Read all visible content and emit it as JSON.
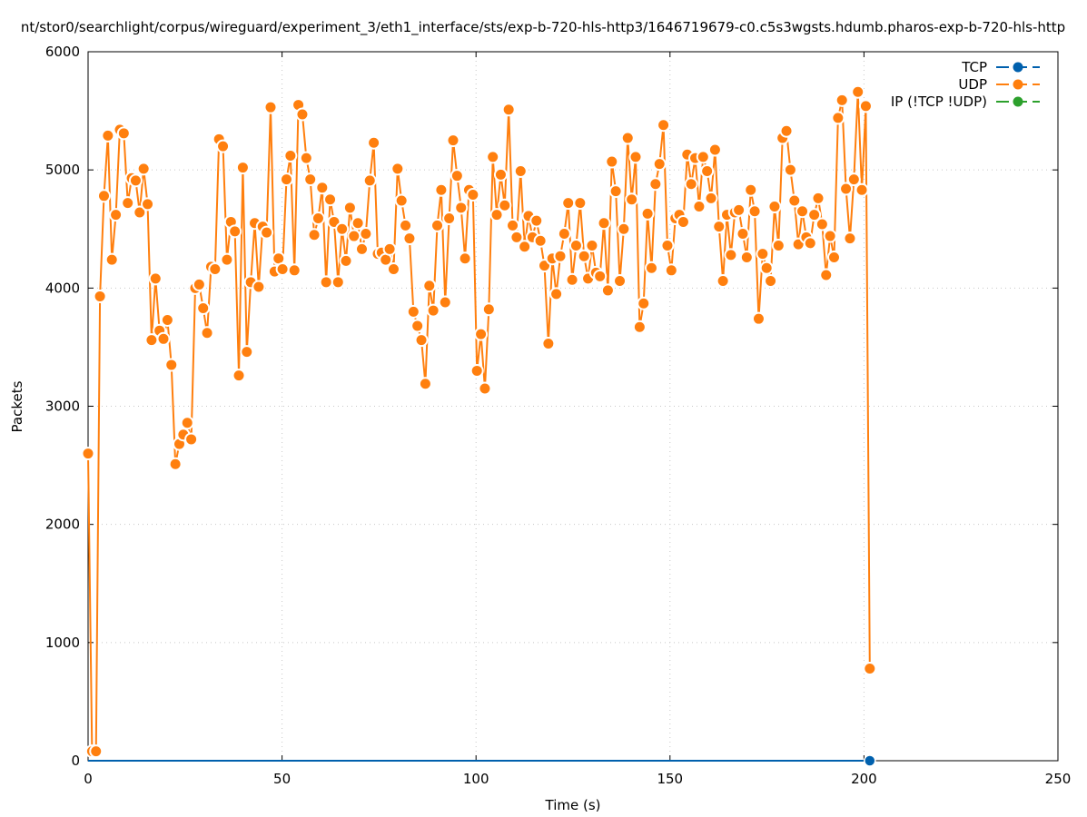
{
  "chart_data": {
    "type": "line",
    "title": "nt/stor0/searchlight/corpus/wireguard/experiment_3/eth1_interface/sts/exp-b-720-hls-http3/1646719679-c0.c5s3wgsts.hdumb.pharos-exp-b-720-hls-http",
    "xlabel": "Time (s)",
    "ylabel": "Packets",
    "xlim": [
      0,
      250
    ],
    "ylim": [
      0,
      6000
    ],
    "xticks": [
      "0",
      "50",
      "100",
      "150",
      "200",
      "250"
    ],
    "yticks": [
      "0",
      "1000",
      "2000",
      "3000",
      "4000",
      "5000",
      "6000"
    ],
    "grid": true,
    "legend_position": "top-right",
    "x_start": 0,
    "x_end": 201.5,
    "series": [
      {
        "name": "TCP",
        "color": "#0060ad",
        "values": [
          0,
          0
        ]
      },
      {
        "name": "UDP",
        "color": "#ff7f0e",
        "values": [
          2600,
          80,
          80,
          3930,
          4780,
          5290,
          4240,
          4620,
          5340,
          5310,
          4720,
          4930,
          4910,
          4640,
          5010,
          4710,
          3560,
          4080,
          3640,
          3570,
          3730,
          3350,
          2510,
          2680,
          2760,
          2860,
          2720,
          4000,
          4030,
          3830,
          3620,
          4180,
          4160,
          5260,
          5200,
          4240,
          4560,
          4480,
          3260,
          5020,
          3460,
          4050,
          4550,
          4010,
          4520,
          4470,
          5530,
          4140,
          4250,
          4160,
          4920,
          5120,
          4150,
          5550,
          5470,
          5100,
          4920,
          4450,
          4590,
          4850,
          4050,
          4750,
          4560,
          4050,
          4500,
          4230,
          4680,
          4440,
          4550,
          4330,
          4460,
          4910,
          5230,
          4290,
          4300,
          4240,
          4330,
          4160,
          5010,
          4740,
          4530,
          4420,
          3800,
          3680,
          3560,
          3190,
          4020,
          3810,
          4530,
          4830,
          3880,
          4590,
          5250,
          4950,
          4680,
          4250,
          4830,
          4790,
          3300,
          3610,
          3150,
          3820,
          5110,
          4620,
          4960,
          4700,
          5510,
          4530,
          4430,
          4990,
          4350,
          4610,
          4430,
          4570,
          4400,
          4190,
          3530,
          4250,
          3950,
          4270,
          4460,
          4720,
          4070,
          4360,
          4720,
          4270,
          4080,
          4360,
          4130,
          4100,
          4550,
          3980,
          5070,
          4820,
          4060,
          4500,
          5270,
          4750,
          5110,
          3670,
          3870,
          4630,
          4170,
          4880,
          5050,
          5380,
          4360,
          4150,
          4590,
          4620,
          4560,
          5130,
          4880,
          5100,
          4690,
          5110,
          4990,
          4760,
          5170,
          4520,
          4060,
          4620,
          4280,
          4640,
          4660,
          4460,
          4260,
          4830,
          4650,
          3740,
          4290,
          4170,
          4060,
          4690,
          4360,
          5270,
          5330,
          5000,
          4740,
          4370,
          4650,
          4430,
          4380,
          4620,
          4760,
          4540,
          4110,
          4440,
          4260,
          5440,
          5590,
          4840,
          4420,
          4920,
          5660,
          4830,
          5540,
          780
        ]
      },
      {
        "name": "IP (!TCP  !UDP)",
        "color": "#2ca02c",
        "values": [
          0,
          0
        ]
      }
    ]
  }
}
